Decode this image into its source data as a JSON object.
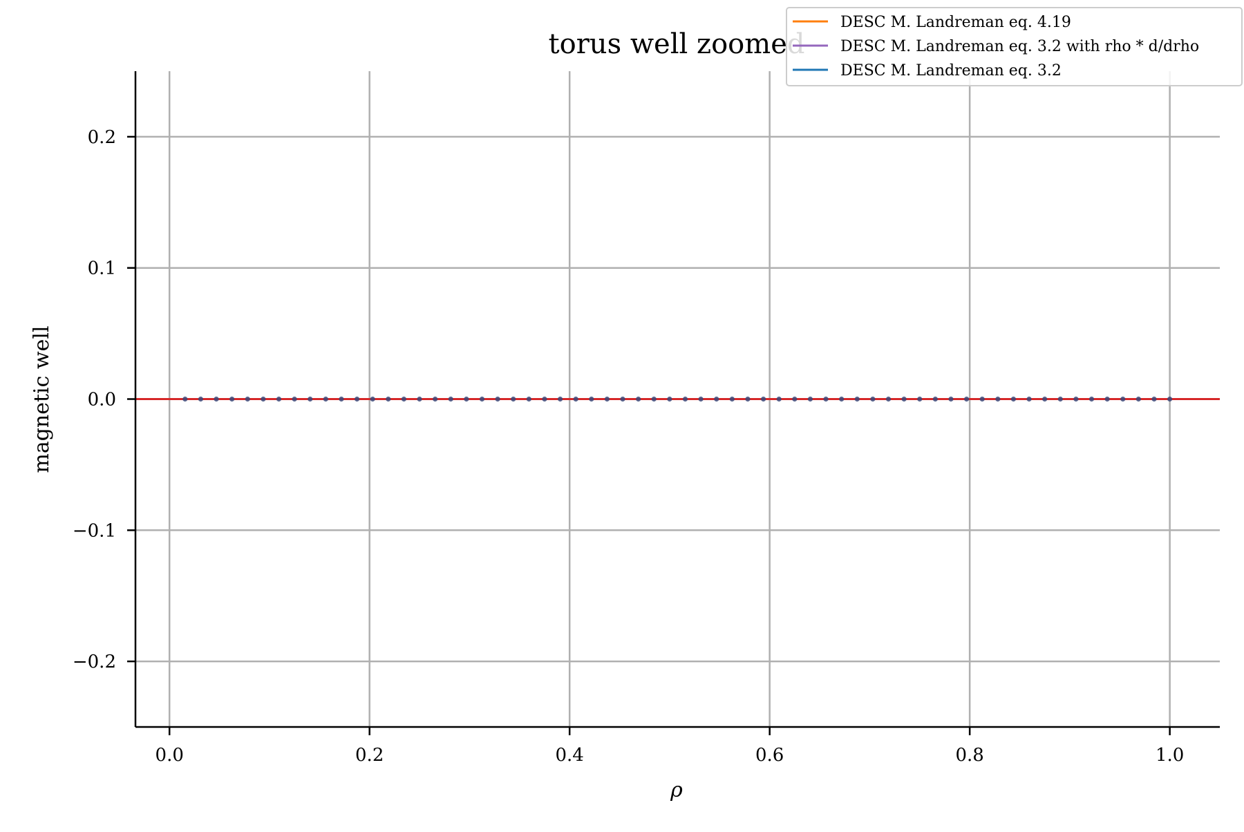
{
  "chart_data": {
    "type": "line",
    "title": "torus well zoomed",
    "xlabel": "ρ",
    "ylabel": "magnetic well",
    "xlim": [
      -0.034,
      1.05
    ],
    "ylim": [
      -0.25,
      0.25
    ],
    "x_ticks": [
      0.0,
      0.2,
      0.4,
      0.6,
      0.8,
      1.0
    ],
    "x_tick_labels": [
      "0.0",
      "0.2",
      "0.4",
      "0.6",
      "0.8",
      "1.0"
    ],
    "y_ticks": [
      0.2,
      0.1,
      0.0,
      -0.1,
      -0.2
    ],
    "y_tick_labels": [
      "0.2",
      "0.1",
      "0.0",
      "−0.1",
      "−0.2"
    ],
    "grid": true,
    "legend_position": "top-right",
    "series": [
      {
        "name": "DESC M. Landreman eq. 4.19",
        "color": "#ff7f0e",
        "style": "line",
        "x_range": [
          0.0,
          1.0
        ],
        "y_constant": 0.0
      },
      {
        "name": "DESC M. Landreman eq. 3.2 with rho * d/drho",
        "color": "#9467bd",
        "style": "line",
        "x_range": [
          0.0,
          1.0
        ],
        "y_constant": 0.0
      },
      {
        "name": "DESC M. Landreman eq. 3.2",
        "color": "#1f77b4",
        "style": "line",
        "x_range": [
          0.0,
          1.0
        ],
        "y_constant": 0.0
      },
      {
        "name": "",
        "color": "#d62728",
        "style": "line",
        "x_range": [
          -0.034,
          1.05
        ],
        "y_constant": 0.0
      },
      {
        "name": "",
        "color": "#3b4a7a",
        "style": "markers",
        "x_start": 0.0156,
        "x_step": 0.015625,
        "count": 64,
        "y_constant": 0.0
      }
    ]
  }
}
